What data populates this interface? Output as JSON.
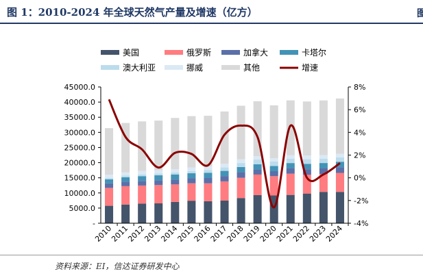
{
  "title": "图 1：2010-2024 年全球天然气产量及增速（亿方）",
  "source": "资料来源：EI，信达证券研发中心",
  "chart_data": {
    "type": "bar",
    "stacked": true,
    "categories": [
      "2010",
      "2011",
      "2012",
      "2013",
      "2014",
      "2015",
      "2016",
      "2017",
      "2018",
      "2019",
      "2020",
      "2021",
      "2022",
      "2023",
      "2024"
    ],
    "series": [
      {
        "name": "美国",
        "color": "#44546a",
        "values": [
          5750,
          6170,
          6500,
          6560,
          7040,
          7430,
          7290,
          7460,
          8320,
          9280,
          9160,
          9350,
          9800,
          10350,
          10350
        ]
      },
      {
        "name": "俄罗斯",
        "color": "#ff7c80",
        "values": [
          5920,
          6070,
          5950,
          6040,
          5780,
          5760,
          5890,
          6360,
          6700,
          6790,
          6380,
          7020,
          6180,
          5860,
          6260
        ]
      },
      {
        "name": "加拿大",
        "color": "#5b6fa8",
        "values": [
          1490,
          1510,
          1520,
          1560,
          1620,
          1630,
          1740,
          1760,
          1850,
          1700,
          1650,
          1730,
          1850,
          1880,
          1900
        ]
      },
      {
        "name": "卡塔尔",
        "color": "#4393b6",
        "values": [
          1310,
          1450,
          1580,
          1660,
          1670,
          1680,
          1750,
          1700,
          1700,
          1720,
          1700,
          1770,
          1790,
          1790,
          1800
        ]
      },
      {
        "name": "澳大利亚",
        "color": "#bcdcec",
        "values": [
          520,
          570,
          590,
          600,
          660,
          740,
          920,
          1140,
          1310,
          1530,
          1470,
          1470,
          1510,
          1460,
          1400
        ]
      },
      {
        "name": "挪威",
        "color": "#dbe9f5",
        "values": [
          1060,
          1010,
          1140,
          1080,
          1080,
          1170,
          1160,
          1230,
          1200,
          1140,
          1110,
          1140,
          1220,
          1160,
          1240
        ]
      },
      {
        "name": "其他",
        "color": "#d9d9d9",
        "values": [
          15350,
          16320,
          16350,
          16400,
          16920,
          16960,
          16730,
          17250,
          17720,
          18130,
          17460,
          18090,
          17850,
          18050,
          18250
        ]
      }
    ],
    "line_series": {
      "name": "增速",
      "color": "#8b0000",
      "values": [
        6.9,
        3.6,
        2.5,
        0.9,
        2.2,
        2.1,
        1.1,
        3.8,
        4.6,
        3.6,
        -2.6,
        4.6,
        0.0,
        0.3,
        1.3
      ]
    },
    "y_axis_left": {
      "ticks": [
        "-",
        "5000.0",
        "10000.0",
        "15000.0",
        "20000.0",
        "25000.0",
        "30000.0",
        "35000.0",
        "40000.0",
        "45000.0"
      ],
      "min": 0,
      "max": 45000
    },
    "y_axis_right": {
      "ticks": [
        "-4%",
        "-2%",
        "0%",
        "2%",
        "4%",
        "6%",
        "8%"
      ],
      "min": -4,
      "max": 8
    },
    "legend_position": "top",
    "grid": false
  }
}
